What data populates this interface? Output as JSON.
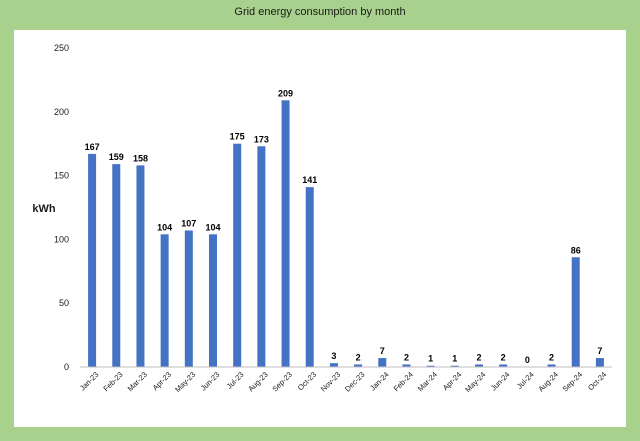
{
  "chart_data": {
    "type": "bar",
    "title": "Grid energy consumption by month",
    "xlabel": "",
    "ylabel": "kWh",
    "ylim": [
      0,
      250
    ],
    "yticks": [
      0,
      50,
      100,
      150,
      200,
      250
    ],
    "grid": false,
    "legend": "none",
    "bar_color": "#4472c4",
    "background_color": "#a9d18e",
    "plot_background_color": "#ffffff",
    "categories": [
      "Jan-23",
      "Feb-23",
      "Mar-23",
      "Apr-23",
      "May-23",
      "Jun-23",
      "Jul-23",
      "Aug-23",
      "Sep-23",
      "Oct-23",
      "Nov-23",
      "Dec-23",
      "Jan-24",
      "Feb-24",
      "Mar-24",
      "Apr-24",
      "May-24",
      "Jun-24",
      "Jul-24",
      "Aug-24",
      "Sep-24",
      "Oct-24"
    ],
    "values": [
      167,
      159,
      158,
      104,
      107,
      104,
      175,
      173,
      209,
      141,
      3,
      2,
      7,
      2,
      1,
      1,
      2,
      2,
      0,
      2,
      86,
      7
    ]
  }
}
